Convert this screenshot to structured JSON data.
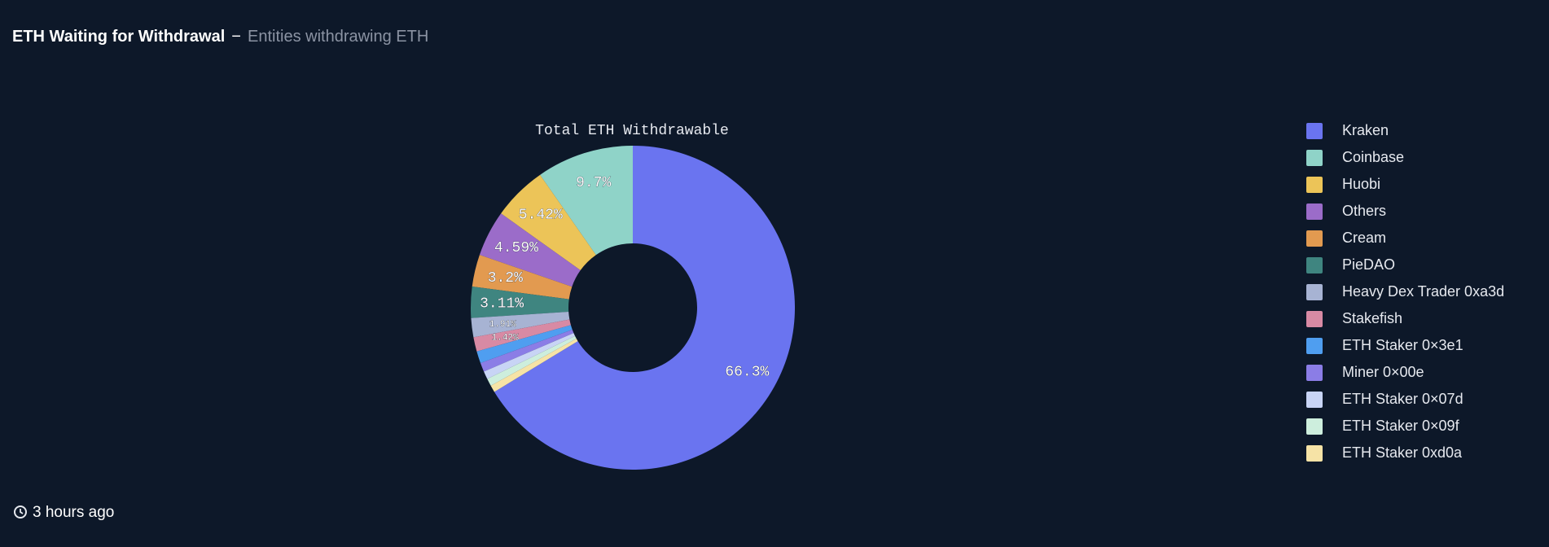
{
  "header": {
    "title": "ETH Waiting for Withdrawal",
    "separator": "−",
    "subtitle": "Entities withdrawing ETH"
  },
  "chart_data": {
    "type": "pie",
    "title": "Total ETH Withdrawable",
    "donut": true,
    "categories": [
      "Kraken",
      "Coinbase",
      "Huobi",
      "Others",
      "Cream",
      "PieDAO",
      "Heavy Dex Trader 0xa3d",
      "Stakefish",
      "ETH Staker 0×3e1",
      "Miner 0×00e",
      "ETH Staker 0×07d",
      "ETH Staker 0×09f",
      "ETH Staker 0xd0a"
    ],
    "values": [
      66.3,
      9.7,
      5.42,
      4.59,
      3.2,
      3.11,
      1.91,
      1.42,
      1.2,
      0.9,
      0.8,
      0.75,
      0.7
    ],
    "value_labels": [
      "66.3%",
      "9.7%",
      "5.42%",
      "4.59%",
      "3.2%",
      "3.11%",
      "1.91%",
      "1.42%",
      null,
      null,
      null,
      null,
      null
    ],
    "colors": [
      "#6a74f0",
      "#8fd3c8",
      "#ecc458",
      "#9b6cc9",
      "#e29a50",
      "#3f8580",
      "#a7b3d3",
      "#d88aa4",
      "#4f9ef0",
      "#8b7de6",
      "#c8d4f5",
      "#cdeedd",
      "#f6e3a6"
    ],
    "legend": "right"
  },
  "footer": {
    "updated": "3 hours ago"
  }
}
